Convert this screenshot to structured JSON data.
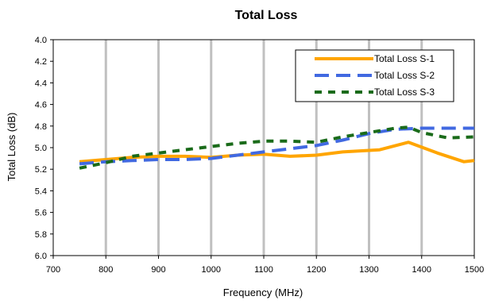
{
  "chart_data": {
    "type": "line",
    "title": "Total Loss",
    "xlabel": "Frequency (MHz)",
    "ylabel": "Total Loss (dB)",
    "xlim": [
      700,
      1500
    ],
    "ylim": [
      4.0,
      6.0
    ],
    "y_inverted": true,
    "x_ticks": [
      700,
      800,
      900,
      1000,
      1100,
      1200,
      1300,
      1400,
      1500
    ],
    "x_tick_labels": [
      "700",
      "800",
      "900",
      "1000",
      "1100",
      "1200",
      "1300",
      "1400",
      "1500"
    ],
    "y_ticks": [
      4.0,
      4.2,
      4.4,
      4.6,
      4.8,
      5.0,
      5.2,
      5.4,
      5.6,
      5.8,
      6.0
    ],
    "y_tick_labels": [
      "4.0",
      "4.2",
      "4.4",
      "4.6",
      "4.8",
      "5.0",
      "5.2",
      "5.4",
      "5.6",
      "5.8",
      "6.0"
    ],
    "grid": "vertical",
    "legend_position": "top-right",
    "series": [
      {
        "name": "Total Loss S-1",
        "color": "#ffa500",
        "dash": "solid",
        "x": [
          750,
          800,
          850,
          900,
          950,
          1000,
          1050,
          1100,
          1150,
          1200,
          1250,
          1320,
          1375,
          1430,
          1480,
          1500
        ],
        "y": [
          5.13,
          5.11,
          5.09,
          5.08,
          5.08,
          5.09,
          5.07,
          5.06,
          5.08,
          5.07,
          5.04,
          5.02,
          4.95,
          5.05,
          5.13,
          5.12
        ]
      },
      {
        "name": "Total Loss S-2",
        "color": "#4169e1",
        "dash": "long-dash",
        "x": [
          750,
          800,
          850,
          900,
          950,
          1000,
          1050,
          1100,
          1150,
          1200,
          1250,
          1300,
          1350,
          1400,
          1450,
          1500
        ],
        "y": [
          5.15,
          5.13,
          5.12,
          5.11,
          5.11,
          5.1,
          5.07,
          5.04,
          5.01,
          4.98,
          4.93,
          4.87,
          4.83,
          4.82,
          4.82,
          4.82
        ]
      },
      {
        "name": "Total Loss S-3",
        "color": "#1a6b1a",
        "dash": "short-dash",
        "x": [
          750,
          800,
          850,
          900,
          950,
          1000,
          1050,
          1100,
          1150,
          1200,
          1250,
          1300,
          1350,
          1375,
          1400,
          1450,
          1500
        ],
        "y": [
          5.19,
          5.14,
          5.08,
          5.05,
          5.02,
          4.99,
          4.96,
          4.94,
          4.94,
          4.95,
          4.9,
          4.86,
          4.82,
          4.81,
          4.86,
          4.91,
          4.9
        ]
      }
    ]
  }
}
